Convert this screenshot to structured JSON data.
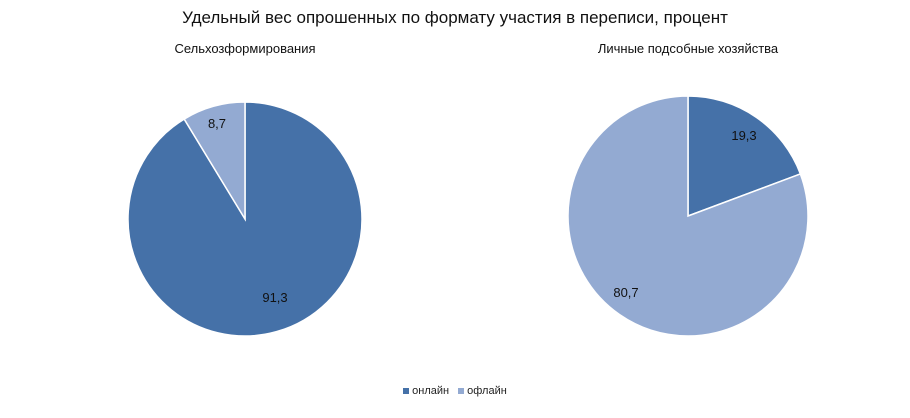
{
  "colors": {
    "online": "#4571a8",
    "offline": "#93aad2"
  },
  "legend": [
    {
      "label": "онлайн",
      "color": "#4571a8"
    },
    {
      "label": "офлайн",
      "color": "#93aad2"
    }
  ],
  "chart_data": {
    "title": "Удельный вес опрошенных по формату участия в переписи, процент",
    "type": "pie",
    "legend_position": "bottom",
    "pies": [
      {
        "name": "Сельхозформирования",
        "slices": [
          {
            "label": "онлайн",
            "value": 91.3,
            "value_text": "91,3"
          },
          {
            "label": "офлайн",
            "value": 8.7,
            "value_text": "8,7"
          }
        ]
      },
      {
        "name": "Личные подсобные хозяйства",
        "slices": [
          {
            "label": "онлайн",
            "value": 19.3,
            "value_text": "19,3"
          },
          {
            "label": "офлайн",
            "value": 80.7,
            "value_text": "80,7"
          }
        ]
      }
    ]
  }
}
